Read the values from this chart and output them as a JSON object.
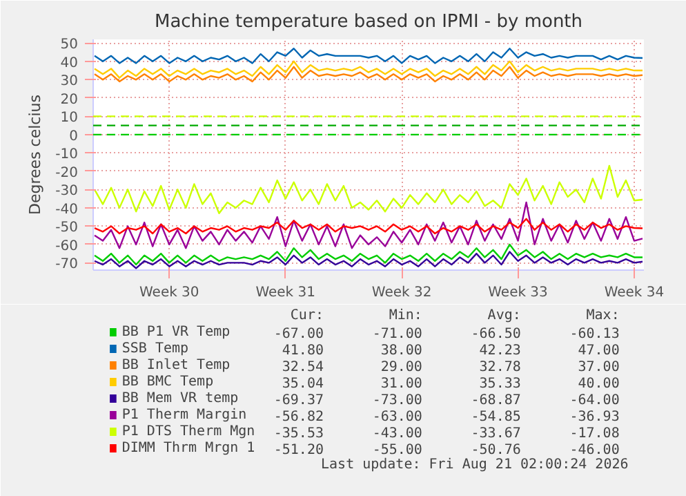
{
  "chart_data": {
    "type": "line",
    "title": "Machine temperature based on IPMI - by month",
    "ylabel": "Degrees celcius",
    "x": [
      "2026-07-19T00:00",
      "2026-07-19T12:00",
      "2026-07-20T00:00",
      "2026-07-20T12:00",
      "2026-07-21T00:00",
      "2026-07-21T12:00",
      "2026-07-22T00:00",
      "2026-07-22T12:00",
      "2026-07-23T00:00",
      "2026-07-23T12:00",
      "2026-07-24T00:00",
      "2026-07-24T12:00",
      "2026-07-25T00:00",
      "2026-07-25T12:00",
      "2026-07-26T00:00",
      "2026-07-26T12:00",
      "2026-07-27T00:00",
      "2026-07-27T12:00",
      "2026-07-28T00:00",
      "2026-07-28T12:00",
      "2026-07-29T00:00",
      "2026-07-29T12:00",
      "2026-07-30T00:00",
      "2026-07-30T12:00",
      "2026-07-31T00:00",
      "2026-07-31T12:00",
      "2026-08-01T00:00",
      "2026-08-01T12:00",
      "2026-08-02T00:00",
      "2026-08-02T12:00",
      "2026-08-03T00:00",
      "2026-08-03T12:00",
      "2026-08-04T00:00",
      "2026-08-04T12:00",
      "2026-08-05T00:00",
      "2026-08-05T12:00",
      "2026-08-06T00:00",
      "2026-08-06T12:00",
      "2026-08-07T00:00",
      "2026-08-07T12:00",
      "2026-08-08T00:00",
      "2026-08-08T12:00",
      "2026-08-09T00:00",
      "2026-08-09T12:00",
      "2026-08-10T00:00",
      "2026-08-10T12:00",
      "2026-08-11T00:00",
      "2026-08-11T12:00",
      "2026-08-12T00:00",
      "2026-08-12T12:00",
      "2026-08-13T00:00",
      "2026-08-13T12:00",
      "2026-08-14T00:00",
      "2026-08-14T12:00",
      "2026-08-15T00:00",
      "2026-08-15T12:00",
      "2026-08-16T00:00",
      "2026-08-16T12:00",
      "2026-08-17T00:00",
      "2026-08-17T12:00",
      "2026-08-18T00:00",
      "2026-08-18T12:00",
      "2026-08-19T00:00",
      "2026-08-19T12:00",
      "2026-08-20T00:00",
      "2026-08-20T12:00",
      "2026-08-21T00:00"
    ],
    "series": [
      {
        "name": "BB P1 VR Temp",
        "color": "#00cc00",
        "values": [
          -66,
          -69,
          -65,
          -70,
          -66,
          -71,
          -66,
          -69,
          -65,
          -70,
          -66,
          -70,
          -66,
          -69,
          -66,
          -69,
          -67,
          -68,
          -67,
          -68,
          -66,
          -68,
          -64,
          -69,
          -62,
          -67,
          -63,
          -68,
          -65,
          -68,
          -66,
          -69,
          -65,
          -68,
          -66,
          -70,
          -65,
          -68,
          -66,
          -69,
          -65,
          -69,
          -65,
          -68,
          -64,
          -67,
          -62,
          -67,
          -63,
          -68,
          -60,
          -66,
          -63,
          -67,
          -64,
          -68,
          -65,
          -68,
          -65,
          -67,
          -65,
          -67,
          -66,
          -67,
          -65,
          -67,
          -67
        ]
      },
      {
        "name": "SSB Temp",
        "color": "#0066b3",
        "values": [
          43,
          40,
          43,
          39,
          42,
          39,
          43,
          40,
          43,
          39,
          42,
          40,
          43,
          40,
          42,
          41,
          43,
          40,
          42,
          39,
          44,
          40,
          45,
          43,
          47,
          42,
          46,
          43,
          44,
          43,
          43,
          43,
          43,
          42,
          43,
          40,
          43,
          39,
          43,
          41,
          43,
          39,
          42,
          40,
          43,
          40,
          44,
          40,
          45,
          42,
          47,
          42,
          45,
          43,
          44,
          42,
          43,
          42,
          43,
          43,
          43,
          41,
          43,
          41,
          43,
          42,
          41.8
        ]
      },
      {
        "name": "BB Inlet Temp",
        "color": "#ff8000",
        "values": [
          33,
          30,
          33,
          29,
          32,
          30,
          33,
          30,
          33,
          29,
          32,
          30,
          33,
          30,
          32,
          31,
          33,
          30,
          32,
          29,
          34,
          30,
          35,
          31,
          37,
          31,
          35,
          32,
          33,
          32,
          33,
          32,
          34,
          31,
          33,
          30,
          33,
          30,
          33,
          31,
          33,
          29,
          32,
          30,
          33,
          30,
          34,
          30,
          35,
          32,
          37,
          31,
          35,
          32,
          34,
          32,
          33,
          32,
          33,
          33,
          33,
          32,
          33,
          32,
          33,
          32,
          32.5
        ]
      },
      {
        "name": "BB BMC Temp",
        "color": "#ffcc00",
        "values": [
          36,
          33,
          36,
          31,
          35,
          32,
          36,
          33,
          36,
          32,
          35,
          33,
          36,
          33,
          35,
          34,
          36,
          33,
          35,
          32,
          37,
          33,
          38,
          34,
          40,
          34,
          38,
          35,
          36,
          35,
          36,
          35,
          37,
          34,
          36,
          33,
          36,
          33,
          36,
          34,
          36,
          32,
          35,
          33,
          36,
          33,
          37,
          33,
          38,
          35,
          40,
          34,
          38,
          35,
          37,
          35,
          36,
          35,
          36,
          36,
          36,
          35,
          36,
          35,
          36,
          35,
          35
        ]
      },
      {
        "name": "BB Mem VR temp",
        "color": "#330099",
        "values": [
          -69,
          -71,
          -68,
          -72,
          -69,
          -73,
          -69,
          -71,
          -68,
          -72,
          -69,
          -72,
          -69,
          -71,
          -69,
          -71,
          -70,
          -70,
          -70,
          -71,
          -69,
          -70,
          -67,
          -71,
          -66,
          -70,
          -67,
          -71,
          -68,
          -71,
          -69,
          -72,
          -68,
          -71,
          -69,
          -72,
          -68,
          -71,
          -69,
          -72,
          -68,
          -72,
          -68,
          -71,
          -67,
          -70,
          -65,
          -70,
          -66,
          -71,
          -64,
          -69,
          -66,
          -70,
          -67,
          -70,
          -68,
          -71,
          -68,
          -70,
          -68,
          -70,
          -69,
          -70,
          -68,
          -70,
          -69.4
        ]
      },
      {
        "name": "P1 Therm Margin",
        "color": "#990099",
        "values": [
          -55,
          -58,
          -52,
          -62,
          -50,
          -60,
          -48,
          -61,
          -49,
          -60,
          -52,
          -62,
          -50,
          -58,
          -53,
          -60,
          -52,
          -58,
          -53,
          -59,
          -50,
          -57,
          -45,
          -61,
          -47,
          -58,
          -49,
          -60,
          -50,
          -61,
          -49,
          -62,
          -55,
          -60,
          -56,
          -61,
          -53,
          -59,
          -52,
          -60,
          -49,
          -58,
          -48,
          -59,
          -50,
          -60,
          -47,
          -58,
          -49,
          -57,
          -46,
          -58,
          -37,
          -60,
          -46,
          -58,
          -49,
          -59,
          -47,
          -57,
          -48,
          -58,
          -46,
          -57,
          -45,
          -58,
          -56.8
        ]
      },
      {
        "name": "P1 DTS Therm Mgn",
        "color": "#ccff00",
        "values": [
          -30,
          -38,
          -29,
          -40,
          -30,
          -42,
          -31,
          -39,
          -28,
          -41,
          -30,
          -40,
          -27,
          -38,
          -32,
          -43,
          -37,
          -40,
          -36,
          -38,
          -29,
          -37,
          -25,
          -35,
          -26,
          -36,
          -30,
          -38,
          -27,
          -36,
          -28,
          -40,
          -37,
          -41,
          -36,
          -42,
          -35,
          -40,
          -33,
          -38,
          -32,
          -37,
          -30,
          -38,
          -33,
          -37,
          -31,
          -39,
          -36,
          -40,
          -27,
          -33,
          -24,
          -36,
          -28,
          -38,
          -26,
          -34,
          -30,
          -37,
          -24,
          -35,
          -17,
          -34,
          -25,
          -36,
          -35.5
        ]
      },
      {
        "name": "DIMM Thrm Mrgn 1",
        "color": "#ff0000",
        "values": [
          -51,
          -53,
          -50,
          -54,
          -51,
          -52,
          -50,
          -54,
          -49,
          -53,
          -51,
          -54,
          -50,
          -53,
          -51,
          -52,
          -50,
          -53,
          -51,
          -52,
          -50,
          -51,
          -48,
          -52,
          -47,
          -51,
          -49,
          -52,
          -49,
          -53,
          -50,
          -51,
          -50,
          -52,
          -50,
          -53,
          -49,
          -52,
          -50,
          -53,
          -50,
          -54,
          -51,
          -53,
          -50,
          -52,
          -49,
          -53,
          -50,
          -52,
          -48,
          -51,
          -46,
          -52,
          -48,
          -52,
          -49,
          -53,
          -49,
          -52,
          -48,
          -51,
          -49,
          -52,
          -50,
          -51,
          -51.2
        ]
      }
    ],
    "xlim": [
      "2026-07-18T22:00",
      "2026-08-21T02:00"
    ],
    "xticks": [
      {
        "value": "2026-07-23T12:00",
        "label": "Week 30"
      },
      {
        "value": "2026-07-30T12:00",
        "label": "Week 31"
      },
      {
        "value": "2026-08-06T12:00",
        "label": "Week 32"
      },
      {
        "value": "2026-08-13T12:00",
        "label": "Week 33"
      },
      {
        "value": "2026-08-20T12:00",
        "label": "Week 34"
      }
    ],
    "ylim": [
      -74,
      52
    ],
    "yticks": [
      -70,
      -60,
      -50,
      -40,
      -30,
      -20,
      -10,
      0,
      10,
      20,
      30,
      40,
      50
    ],
    "ref_lines": [
      {
        "axis": "y",
        "value": 10,
        "color": "#ccff00",
        "line_style": "dashed"
      },
      {
        "axis": "y",
        "value": 5,
        "color": "#00aa00",
        "line_style": "dashed"
      },
      {
        "axis": "y",
        "value": 0,
        "color": "#00cc00",
        "line_style": "dashed"
      }
    ],
    "grid": true,
    "legend": "bottom",
    "line_style": "solid",
    "annotations": [
      "Cur:",
      "Min:",
      "Avg:",
      "Max:",
      "-67.00",
      "-71.00",
      "-66.50",
      "-60.13",
      "41.80",
      "38.00",
      "42.23",
      "47.00",
      "32.54",
      "29.00",
      "32.78",
      "37.00",
      "35.04",
      "31.00",
      "35.33",
      "40.00",
      "-69.37",
      "-73.00",
      "-68.87",
      "-64.00",
      "-56.82",
      "-63.00",
      "-54.85",
      "-36.93",
      "-35.53",
      "-43.00",
      "-33.67",
      "-17.08",
      "-51.20",
      "-55.00",
      "-50.76",
      "-46.00",
      "Last update: Fri Aug 21 02:00:24 2026"
    ]
  }
}
